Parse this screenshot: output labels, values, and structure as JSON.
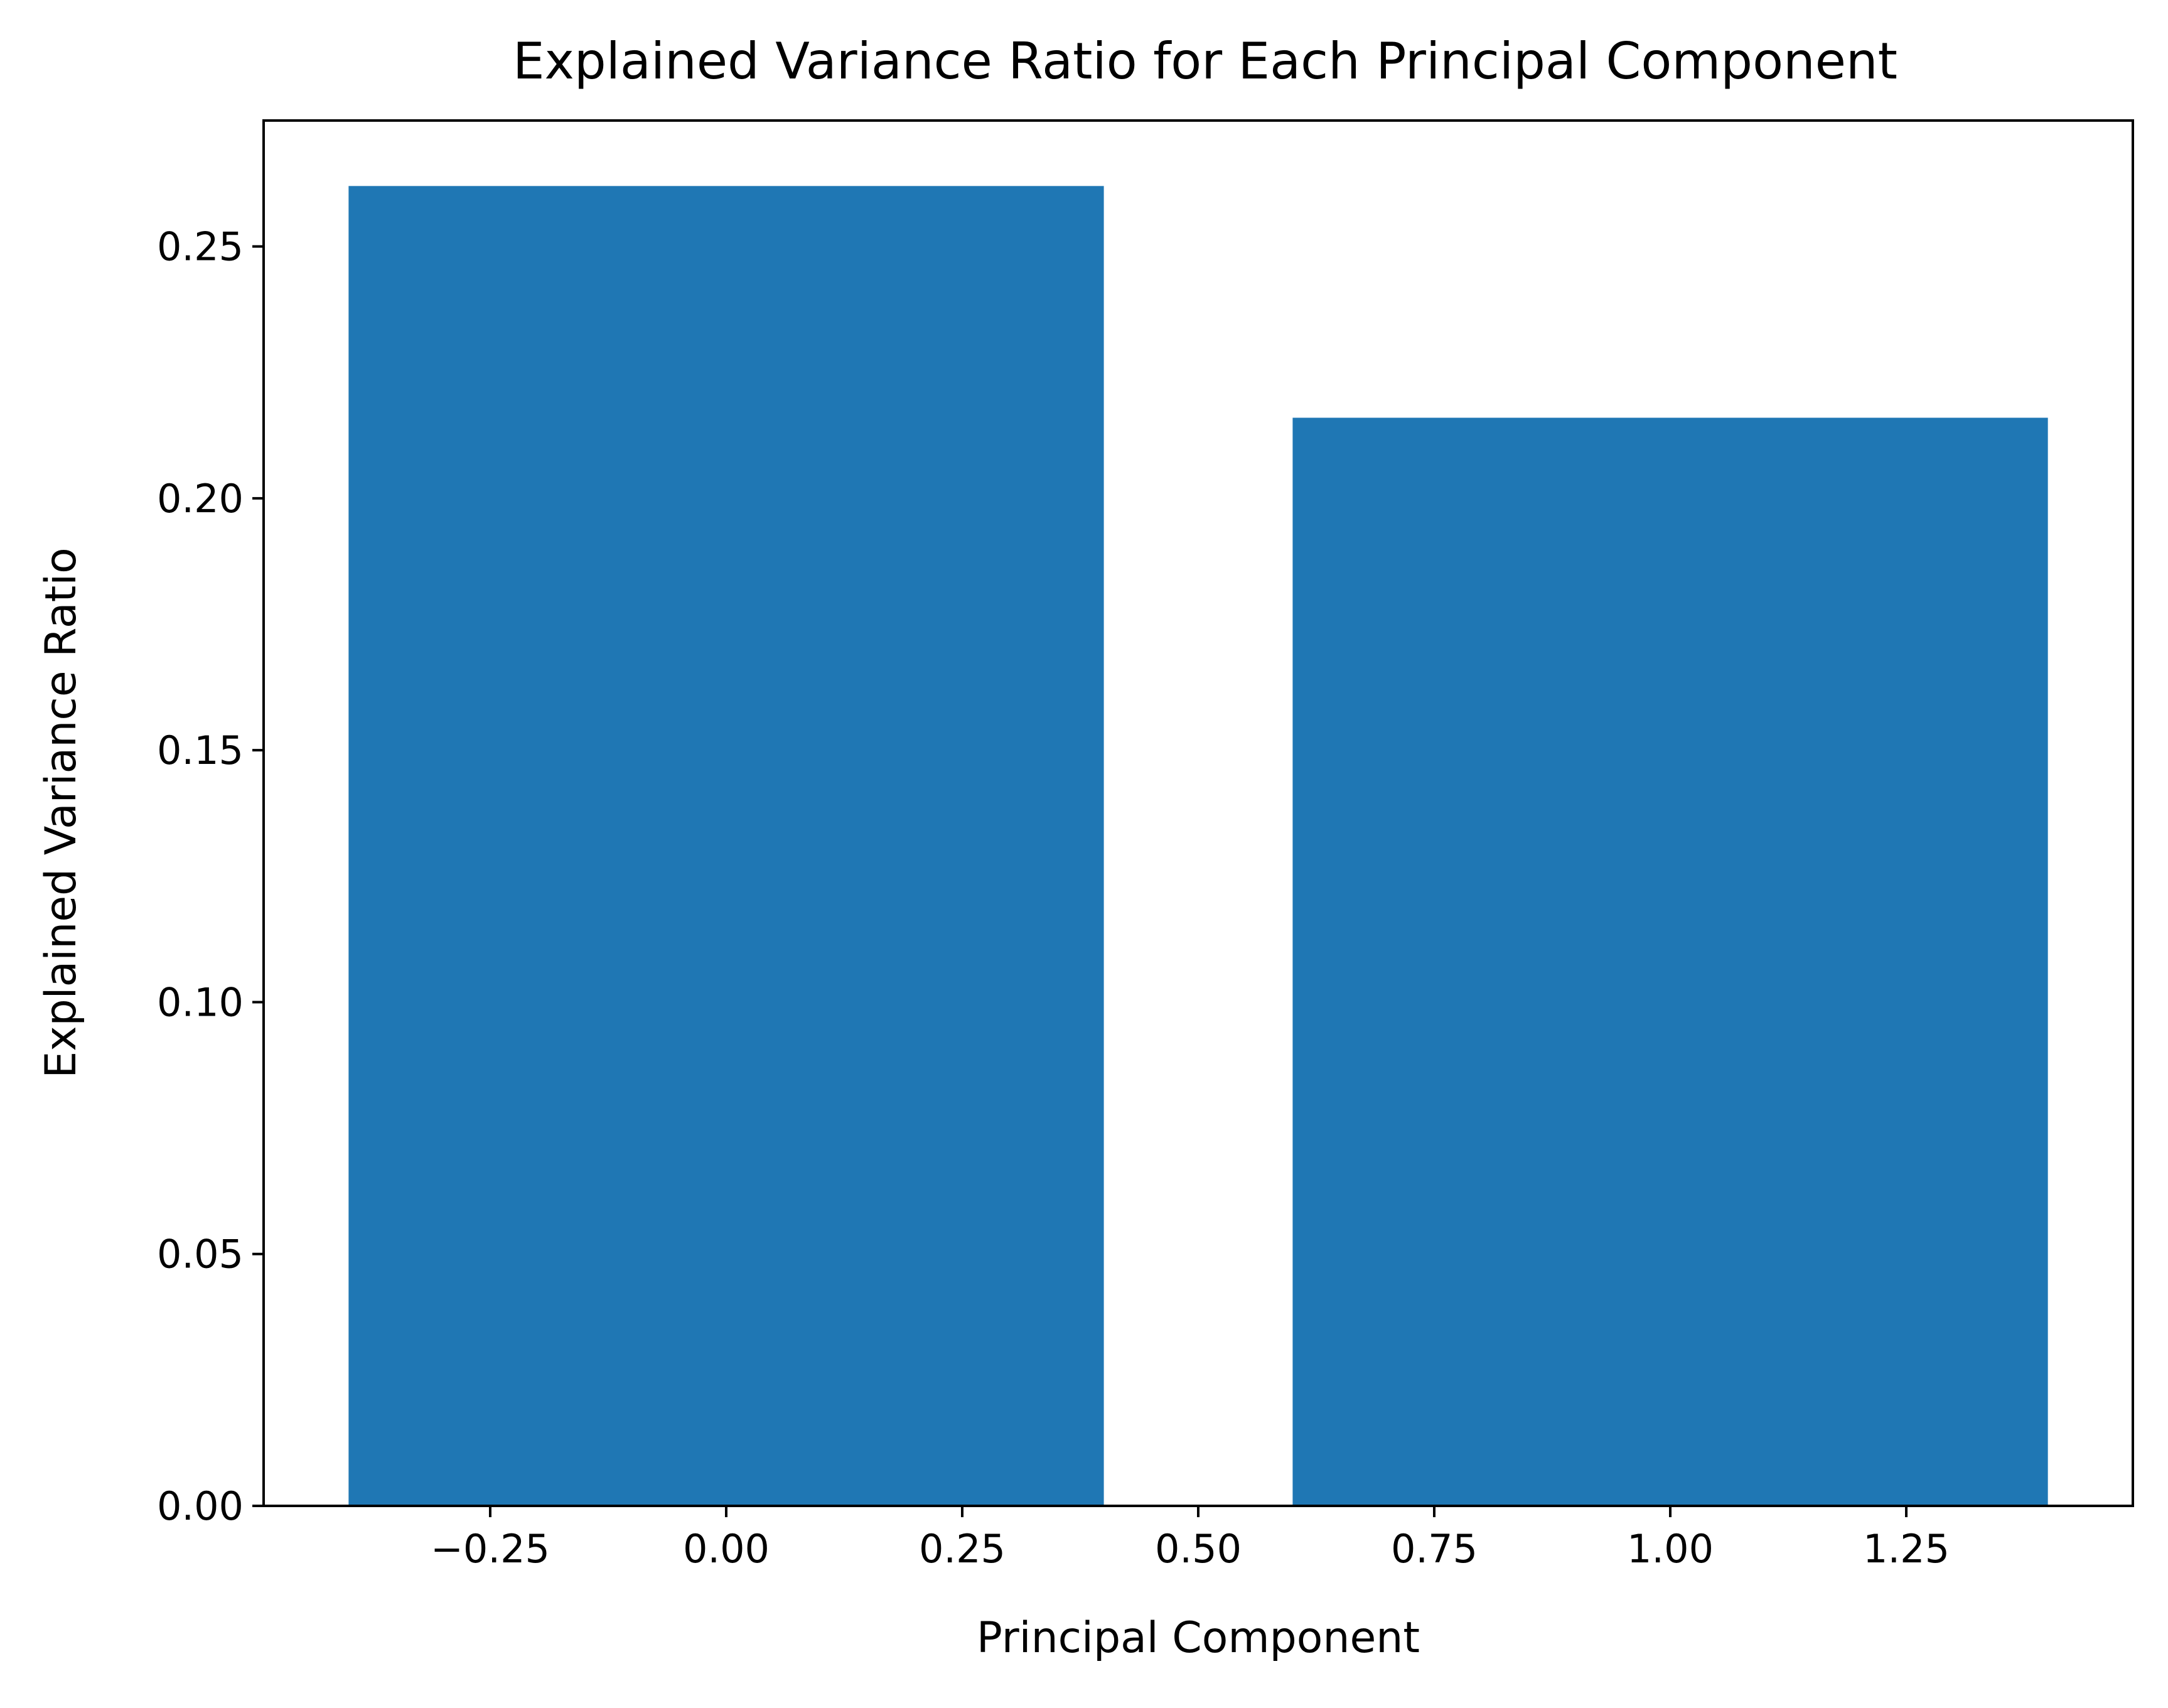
{
  "chart_data": {
    "type": "bar",
    "title": "Explained Variance Ratio for Each Principal Component",
    "xlabel": "Principal Component",
    "ylabel": "Explained Variance Ratio",
    "x": [
      0,
      1
    ],
    "values": [
      0.262,
      0.216
    ],
    "bar_width": 0.8,
    "xlim": [
      -0.49,
      1.49
    ],
    "ylim": [
      0,
      0.275
    ],
    "xticks": [
      -0.25,
      0.0,
      0.25,
      0.5,
      0.75,
      1.0,
      1.25
    ],
    "xtick_labels": [
      "−0.25",
      "0.00",
      "0.25",
      "0.50",
      "0.75",
      "1.00",
      "1.25"
    ],
    "yticks": [
      0.0,
      0.05,
      0.1,
      0.15,
      0.2,
      0.25
    ],
    "ytick_labels": [
      "0.00",
      "0.05",
      "0.10",
      "0.15",
      "0.20",
      "0.25"
    ],
    "grid": false,
    "legend": "none",
    "bar_color": "#1f77b4"
  }
}
